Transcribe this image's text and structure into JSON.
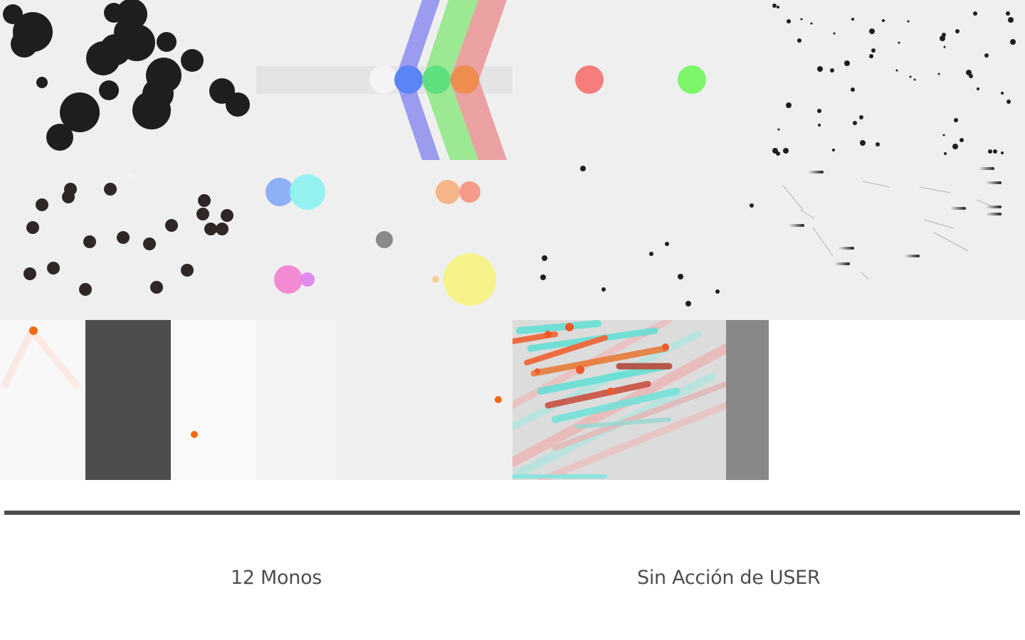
{
  "captions": {
    "left": "12 Monos",
    "right": "Sin Acción de USER"
  },
  "colors": {
    "ink": "#1e1e1e",
    "brown_ink": "#2f2626",
    "orange_dot": "#f26a10",
    "tile_bg": "#efefef",
    "divider": "#4d4d4d",
    "caption_text": "#4d4d4d"
  }
}
